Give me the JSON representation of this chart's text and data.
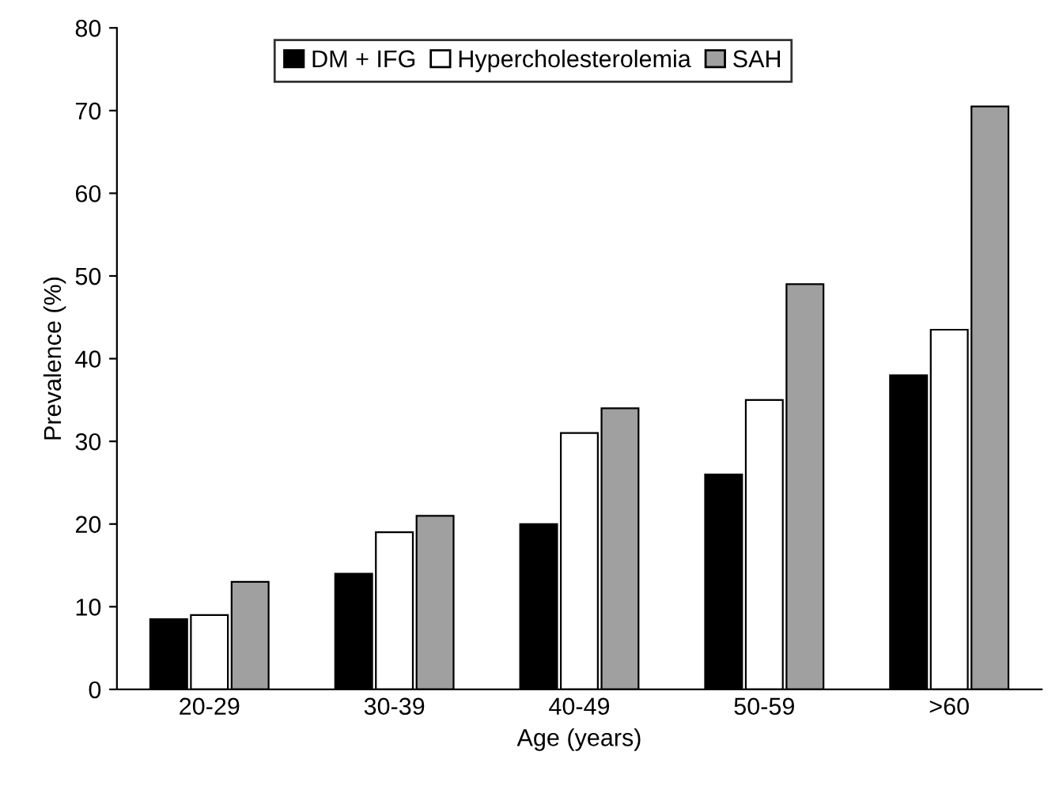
{
  "chart_data": {
    "type": "bar",
    "xlabel": "Age (years)",
    "ylabel": "Prevalence (%)",
    "categories": [
      "20-29",
      "30-39",
      "40-49",
      "50-59",
      ">60"
    ],
    "series": [
      {
        "name": "DM + IFG",
        "color": "#000000",
        "values": [
          8.5,
          14,
          20,
          26,
          38
        ]
      },
      {
        "name": "Hypercholesterolemia",
        "color": "#ffffff",
        "values": [
          9,
          19,
          31,
          35,
          43.5
        ]
      },
      {
        "name": "SAH",
        "color": "#a0a0a0",
        "values": [
          13,
          21,
          34,
          49,
          70.5
        ]
      }
    ],
    "ylim": [
      0,
      80
    ],
    "yticks": [
      0,
      10,
      20,
      30,
      40,
      50,
      60,
      70,
      80
    ],
    "grid": false,
    "legend": "top"
  }
}
